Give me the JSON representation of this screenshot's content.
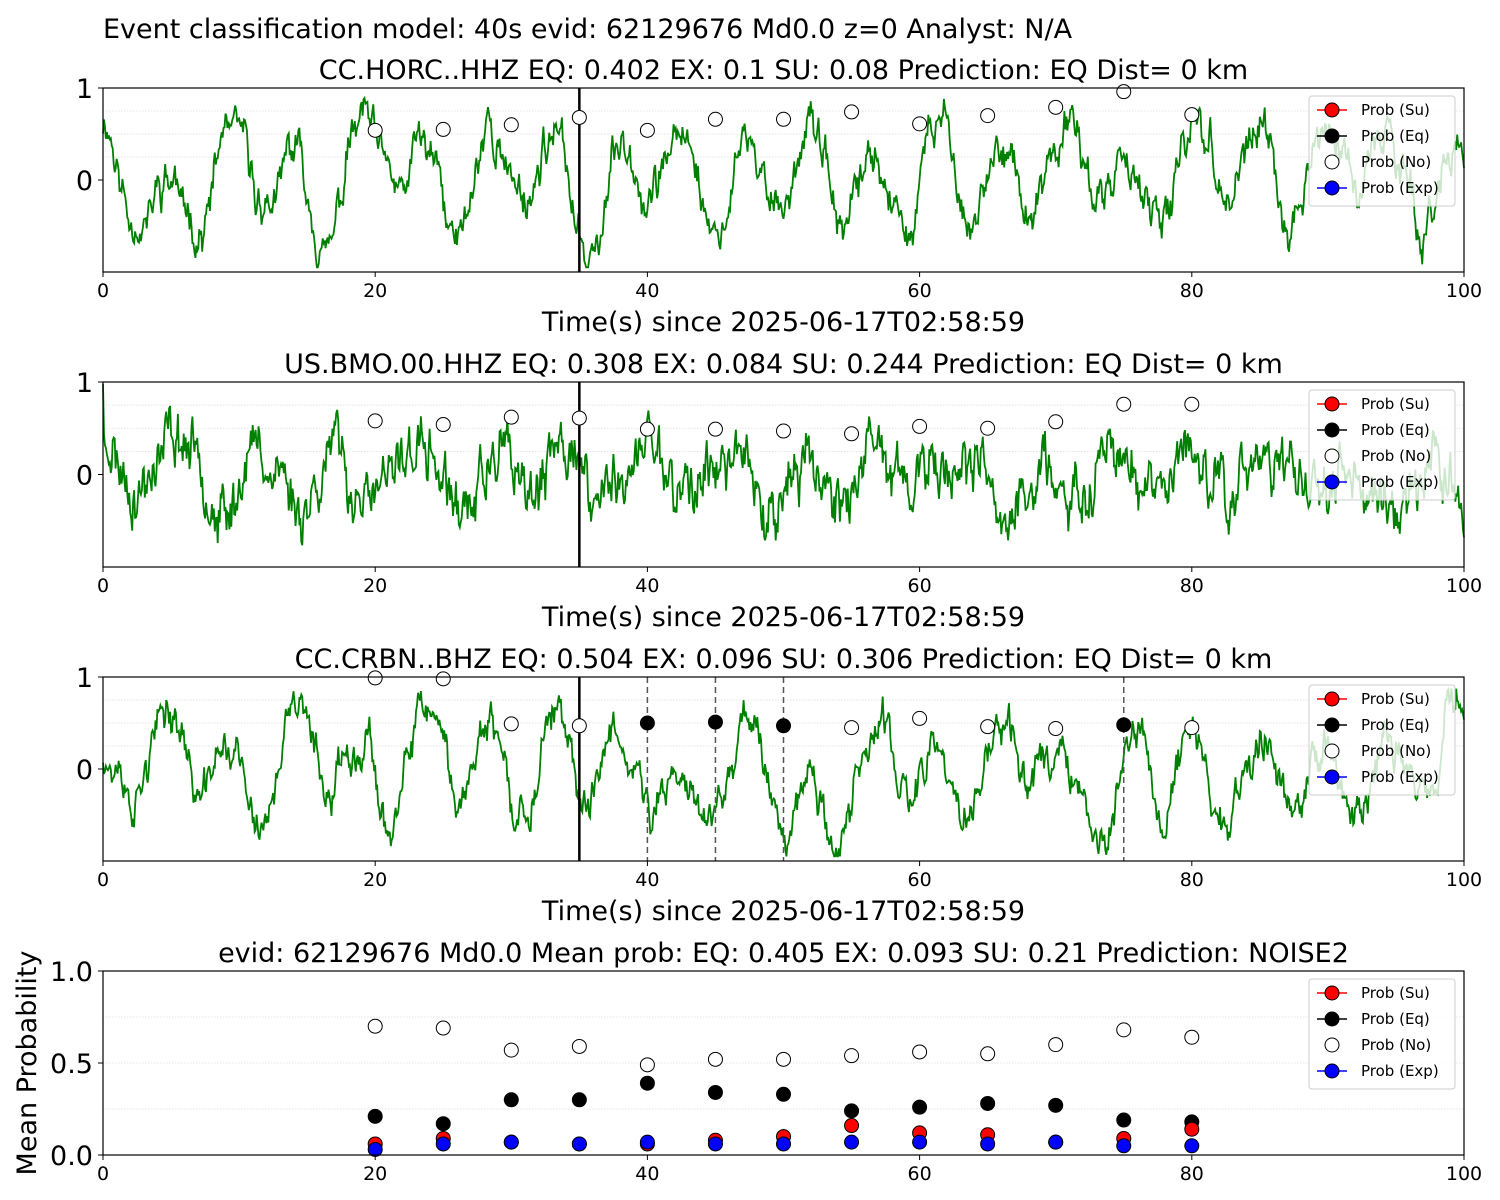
{
  "suptitle": "Event classification model: 40s evid: 62129676 Md0.0 z=0 Analyst: N/A",
  "colors": {
    "waveform": "#008000",
    "su": "#ff0000",
    "eq": "#000000",
    "no": "#ffffff",
    "exp": "#0000ff"
  },
  "legend": [
    "Prob (Su)",
    "Prob (Eq)",
    "Prob (No)",
    "Prob (Exp)"
  ],
  "chart_data": [
    {
      "type": "line",
      "title": "CC.HORC..HHZ   EQ: 0.402  EX: 0.1  SU: 0.08   Prediction: EQ    Dist= 0 km",
      "xlabel": "Time(s) since 2025-06-17T02:58:59",
      "ylabel": "",
      "xlim": [
        0,
        100
      ],
      "ylim": [
        -1,
        1
      ],
      "xticks": [
        0,
        20,
        40,
        60,
        80,
        100
      ],
      "yticks": [
        0,
        1
      ],
      "vline_solid": [
        35
      ],
      "vline_dashed": [],
      "waveform_seed": 11,
      "prob_no": {
        "x": [
          20,
          25,
          30,
          35,
          40,
          45,
          50,
          55,
          60,
          65,
          70,
          75,
          80
        ],
        "y": [
          0.54,
          0.55,
          0.6,
          0.68,
          0.54,
          0.66,
          0.66,
          0.74,
          0.61,
          0.7,
          0.79,
          0.96,
          0.71
        ]
      },
      "prob_eq": {
        "x": [],
        "y": []
      }
    },
    {
      "type": "line",
      "title": "US.BMO.00.HHZ   EQ: 0.308  EX: 0.084  SU: 0.244   Prediction: EQ    Dist= 0 km",
      "xlabel": "Time(s) since 2025-06-17T02:58:59",
      "ylabel": "",
      "xlim": [
        0,
        100
      ],
      "ylim": [
        -1,
        1
      ],
      "xticks": [
        0,
        20,
        40,
        60,
        80,
        100
      ],
      "yticks": [
        0,
        1
      ],
      "vline_solid": [
        35
      ],
      "vline_dashed": [],
      "waveform_seed": 23,
      "prob_no": {
        "x": [
          20,
          25,
          30,
          35,
          40,
          45,
          50,
          55,
          60,
          65,
          70,
          75,
          80
        ],
        "y": [
          0.58,
          0.54,
          0.62,
          0.61,
          0.49,
          0.49,
          0.47,
          0.44,
          0.52,
          0.5,
          0.57,
          0.76,
          0.76
        ]
      },
      "prob_eq": {
        "x": [],
        "y": []
      }
    },
    {
      "type": "line",
      "title": "CC.CRBN..BHZ   EQ: 0.504  EX: 0.096  SU: 0.306   Prediction: EQ    Dist= 0 km",
      "xlabel": "Time(s) since 2025-06-17T02:58:59",
      "ylabel": "",
      "xlim": [
        0,
        100
      ],
      "ylim": [
        -1,
        1
      ],
      "xticks": [
        0,
        20,
        40,
        60,
        80,
        100
      ],
      "yticks": [
        0,
        1
      ],
      "vline_solid": [
        35
      ],
      "vline_dashed": [
        40,
        45,
        50,
        75
      ],
      "waveform_seed": 37,
      "prob_no": {
        "x": [
          20,
          25,
          30,
          35,
          55,
          60,
          65,
          70,
          80
        ],
        "y": [
          0.99,
          0.98,
          0.49,
          0.47,
          0.45,
          0.55,
          0.46,
          0.44,
          0.45
        ]
      },
      "prob_eq": {
        "x": [
          40,
          45,
          50,
          75
        ],
        "y": [
          0.5,
          0.51,
          0.47,
          0.48
        ]
      }
    },
    {
      "type": "scatter",
      "title": "evid: 62129676  Md0.0   Mean prob:   EQ: 0.405  EX: 0.093  SU: 0.21   Prediction: NOISE2",
      "xlabel": "",
      "ylabel": "Mean Probability",
      "xlim": [
        0,
        100
      ],
      "ylim": [
        0,
        1
      ],
      "xticks": [
        0,
        20,
        40,
        60,
        80,
        100
      ],
      "ytick_labels": [
        "0.0",
        "0.5",
        "1.0"
      ],
      "x": [
        20,
        25,
        30,
        35,
        40,
        45,
        50,
        55,
        60,
        65,
        70,
        75,
        80
      ],
      "series": [
        {
          "name": "Prob (No)",
          "values": [
            0.7,
            0.69,
            0.57,
            0.59,
            0.49,
            0.52,
            0.52,
            0.54,
            0.56,
            0.55,
            0.6,
            0.68,
            0.64
          ]
        },
        {
          "name": "Prob (Eq)",
          "values": [
            0.21,
            0.17,
            0.3,
            0.3,
            0.39,
            0.34,
            0.33,
            0.24,
            0.26,
            0.28,
            0.27,
            0.19,
            0.18
          ]
        },
        {
          "name": "Prob (Su)",
          "values": [
            0.06,
            0.09,
            0.07,
            0.06,
            0.06,
            0.08,
            0.1,
            0.16,
            0.12,
            0.11,
            0.07,
            0.09,
            0.14
          ]
        },
        {
          "name": "Prob (Exp)",
          "values": [
            0.03,
            0.06,
            0.07,
            0.06,
            0.07,
            0.06,
            0.06,
            0.07,
            0.07,
            0.06,
            0.07,
            0.05,
            0.05
          ]
        }
      ]
    }
  ]
}
